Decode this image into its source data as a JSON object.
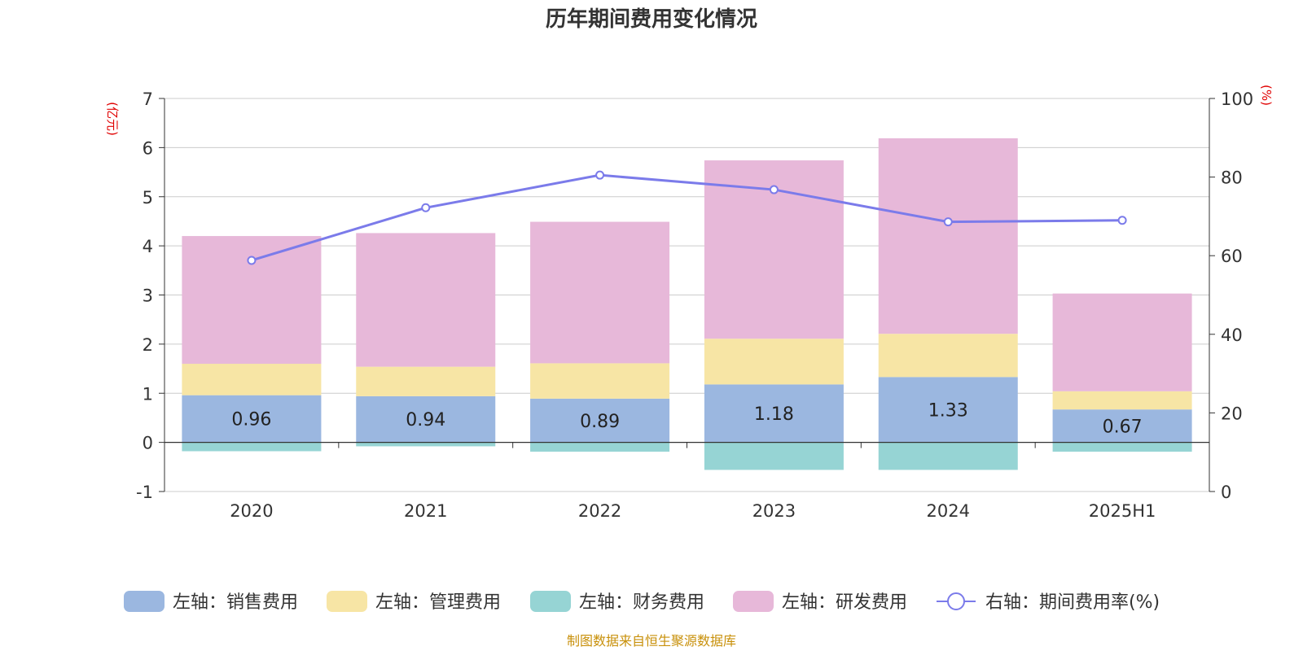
{
  "chart_data": {
    "type": "bar",
    "title": "历年期间费用变化情况",
    "categories": [
      "2020",
      "2021",
      "2022",
      "2023",
      "2024",
      "2025H1"
    ],
    "left_axis": {
      "unit": "(亿元)",
      "ylim": [
        -1,
        7
      ],
      "ticks": [
        "-1",
        "0",
        "1",
        "2",
        "3",
        "4",
        "5",
        "6",
        "7"
      ]
    },
    "right_axis": {
      "unit": "(%)",
      "ylim": [
        0,
        100
      ],
      "ticks": [
        "0",
        "20",
        "40",
        "60",
        "80",
        "100"
      ]
    },
    "grid": true,
    "series": [
      {
        "name": "左轴：销售费用",
        "color": "#9bb7e0",
        "values": [
          0.96,
          0.94,
          0.89,
          1.18,
          1.33,
          0.67
        ],
        "labels": [
          "0.96",
          "0.94",
          "0.89",
          "1.18",
          "1.33",
          "0.67"
        ]
      },
      {
        "name": "左轴：管理费用",
        "color": "#f7e5a5",
        "values": [
          0.64,
          0.6,
          0.72,
          0.93,
          0.88,
          0.37
        ]
      },
      {
        "name": "左轴：财务费用",
        "color": "#96d4d4",
        "values": [
          -0.18,
          -0.08,
          -0.19,
          -0.56,
          -0.56,
          -0.19
        ]
      },
      {
        "name": "左轴：研发费用",
        "color": "#e7b8d9",
        "values": [
          2.6,
          2.72,
          2.88,
          3.63,
          3.98,
          1.99
        ]
      },
      {
        "name": "右轴：期间费用率(%)",
        "color": "#7b7bea",
        "type": "line",
        "axis": "right",
        "values": [
          58.8,
          72.2,
          80.5,
          76.8,
          68.6,
          69.0
        ]
      }
    ],
    "legend_position": "bottom"
  },
  "source": "制图数据来自恒生聚源数据库"
}
